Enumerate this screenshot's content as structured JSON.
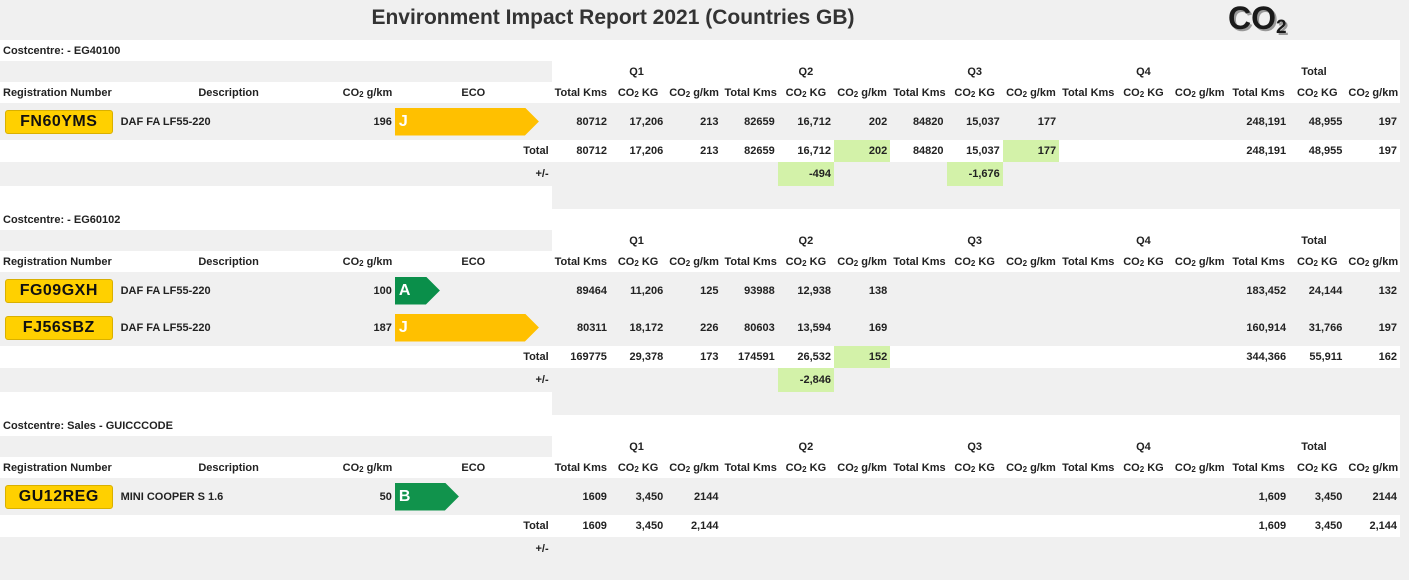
{
  "report": {
    "title": "Environment Impact Report 2021 (Countries GB)",
    "logo": "CO"
  },
  "headers": {
    "registration": "Registration Number",
    "description": "Description",
    "co2_gkm_prefix": "CO",
    "co2_gkm_suffix": " g/km",
    "eco": "ECO",
    "q1": "Q1",
    "q2": "Q2",
    "q3": "Q3",
    "q4": "Q4",
    "total": "Total",
    "total_kms": "Total Kms",
    "co2_kg_prefix": "CO",
    "co2_kg_suffix": " KG",
    "total_row": "Total",
    "diff_row": "+/-"
  },
  "colors": {
    "plate": "#ffd000",
    "eco_J": "#ffc000",
    "eco_A": "#0a8f4a",
    "eco_B": "#11934c",
    "highlight": "#d3f2a9"
  },
  "costcentres": [
    {
      "label": "Costcentre: - EG40100",
      "vehicles": [
        {
          "reg": "FN60YMS",
          "desc": "DAF FA LF55-220",
          "co2": "196",
          "eco": "J",
          "eco_color": "#ffc000",
          "eco_width": 144,
          "q1": [
            "80712",
            "17,206",
            "213"
          ],
          "q2": [
            "82659",
            "16,712",
            "202"
          ],
          "q3": [
            "84820",
            "15,037",
            "177"
          ],
          "q4": [
            "",
            "",
            ""
          ],
          "total": [
            "248,191",
            "48,955",
            "197"
          ]
        }
      ],
      "totals": {
        "q1": [
          "80712",
          "17,206",
          "213"
        ],
        "q2": [
          "82659",
          "16,712",
          "202"
        ],
        "q3": [
          "84820",
          "15,037",
          "177"
        ],
        "q4": [
          "",
          "",
          ""
        ],
        "total": [
          "248,191",
          "48,955",
          "197"
        ]
      },
      "totals_hl": [
        "q2",
        "q3"
      ],
      "diff": {
        "q2": "-494",
        "q3": "-1,676"
      }
    },
    {
      "label": "Costcentre: - EG60102",
      "vehicles": [
        {
          "reg": "FG09GXH",
          "desc": "DAF FA LF55-220",
          "co2": "100",
          "eco": "A",
          "eco_color": "#0a8f4a",
          "eco_width": 45,
          "q1": [
            "89464",
            "11,206",
            "125"
          ],
          "q2": [
            "93988",
            "12,938",
            "138"
          ],
          "q3": [
            "",
            "",
            ""
          ],
          "q4": [
            "",
            "",
            ""
          ],
          "total": [
            "183,452",
            "24,144",
            "132"
          ]
        },
        {
          "reg": "FJ56SBZ",
          "desc": "DAF FA LF55-220",
          "co2": "187",
          "eco": "J",
          "eco_color": "#ffc000",
          "eco_width": 144,
          "q1": [
            "80311",
            "18,172",
            "226"
          ],
          "q2": [
            "80603",
            "13,594",
            "169"
          ],
          "q3": [
            "",
            "",
            ""
          ],
          "q4": [
            "",
            "",
            ""
          ],
          "total": [
            "160,914",
            "31,766",
            "197"
          ]
        }
      ],
      "totals": {
        "q1": [
          "169775",
          "29,378",
          "173"
        ],
        "q2": [
          "174591",
          "26,532",
          "152"
        ],
        "q3": [
          "",
          "",
          ""
        ],
        "q4": [
          "",
          "",
          ""
        ],
        "total": [
          "344,366",
          "55,911",
          "162"
        ]
      },
      "totals_hl": [
        "q2"
      ],
      "diff": {
        "q2": "-2,846"
      }
    },
    {
      "label": "Costcentre: Sales - GUICCCODE",
      "vehicles": [
        {
          "reg": "GU12REG",
          "desc": "MINI COOPER S 1.6",
          "co2": "50",
          "eco": "B",
          "eco_color": "#11934c",
          "eco_width": 64,
          "q1": [
            "1609",
            "3,450",
            "2144"
          ],
          "q2": [
            "",
            "",
            ""
          ],
          "q3": [
            "",
            "",
            ""
          ],
          "q4": [
            "",
            "",
            ""
          ],
          "total": [
            "1,609",
            "3,450",
            "2144"
          ]
        }
      ],
      "totals": {
        "q1": [
          "1609",
          "3,450",
          "2,144"
        ],
        "q2": [
          "",
          "",
          ""
        ],
        "q3": [
          "",
          "",
          ""
        ],
        "q4": [
          "",
          "",
          ""
        ],
        "total": [
          "1,609",
          "3,450",
          "2,144"
        ]
      },
      "totals_hl": [],
      "diff": {}
    }
  ]
}
